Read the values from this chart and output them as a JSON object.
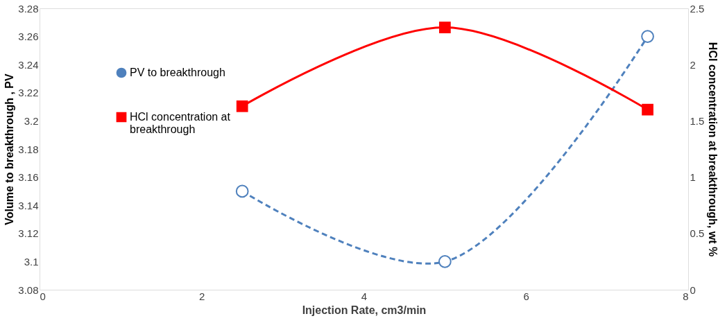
{
  "chart_data": {
    "type": "line",
    "xlabel": "Injection Rate, cm3/min",
    "ylabel": "Volume to breakthrough , PV",
    "y2label": "HCl concentration at breakthrough, wt %",
    "x": [
      2.5,
      5,
      7.5
    ],
    "series": [
      {
        "name": "PV to breakthrough",
        "color": "#4f81bd",
        "values": [
          3.15,
          3.1,
          3.26
        ],
        "marker": "circle",
        "line_style": "dashed"
      },
      {
        "name": "HCl concentration at breakthrough",
        "color": "#ff0000",
        "values": [
          1.63,
          2.33,
          1.6
        ],
        "marker": "square",
        "line_style": "solid",
        "axis": "y2"
      }
    ],
    "xlim": [
      0,
      8
    ],
    "xticks": [
      0,
      2,
      4,
      6,
      8
    ],
    "ylim": [
      3.08,
      3.28
    ],
    "yticks": [
      3.08,
      3.1,
      3.12,
      3.14,
      3.16,
      3.18,
      3.2,
      3.22,
      3.24,
      3.26,
      3.28
    ],
    "y2lim": [
      0,
      2.5
    ],
    "y2ticks": [
      0,
      0.5,
      1,
      1.5,
      2,
      2.5
    ],
    "grid": false,
    "legend": "top left"
  }
}
